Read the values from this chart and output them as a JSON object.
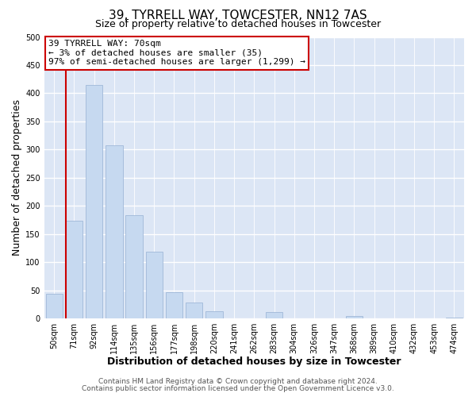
{
  "title": "39, TYRRELL WAY, TOWCESTER, NN12 7AS",
  "subtitle": "Size of property relative to detached houses in Towcester",
  "xlabel": "Distribution of detached houses by size in Towcester",
  "ylabel": "Number of detached properties",
  "bar_labels": [
    "50sqm",
    "71sqm",
    "92sqm",
    "114sqm",
    "135sqm",
    "156sqm",
    "177sqm",
    "198sqm",
    "220sqm",
    "241sqm",
    "262sqm",
    "283sqm",
    "304sqm",
    "326sqm",
    "347sqm",
    "368sqm",
    "389sqm",
    "410sqm",
    "432sqm",
    "453sqm",
    "474sqm"
  ],
  "bar_values": [
    44,
    173,
    415,
    308,
    183,
    118,
    46,
    28,
    13,
    0,
    0,
    12,
    0,
    0,
    0,
    4,
    0,
    0,
    0,
    0,
    2
  ],
  "bar_color": "#c6d9f0",
  "bar_edge_color": "#a0b8d8",
  "marker_color": "#cc0000",
  "annotation_line1": "39 TYRRELL WAY: 70sqm",
  "annotation_line2": "← 3% of detached houses are smaller (35)",
  "annotation_line3": "97% of semi-detached houses are larger (1,299) →",
  "annotation_box_color": "#ffffff",
  "annotation_box_edge": "#cc0000",
  "ylim": [
    0,
    500
  ],
  "yticks": [
    0,
    50,
    100,
    150,
    200,
    250,
    300,
    350,
    400,
    450,
    500
  ],
  "footer_line1": "Contains HM Land Registry data © Crown copyright and database right 2024.",
  "footer_line2": "Contains public sector information licensed under the Open Government Licence v3.0.",
  "figure_bg_color": "#ffffff",
  "plot_bg_color": "#dce6f5",
  "grid_color": "#ffffff",
  "title_fontsize": 11,
  "subtitle_fontsize": 9,
  "axis_label_fontsize": 9,
  "tick_fontsize": 7,
  "footer_fontsize": 6.5,
  "annotation_fontsize": 8
}
